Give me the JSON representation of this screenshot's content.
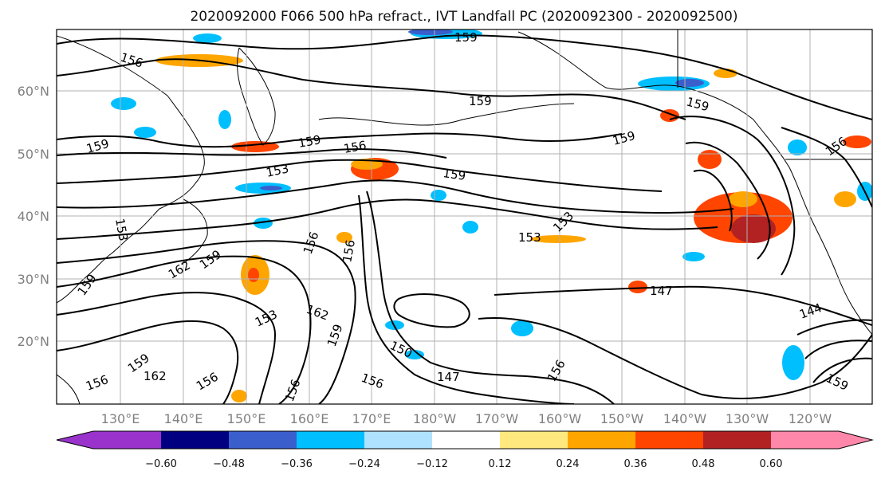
{
  "title": "2020092000 F066 500 hPa refract., IVT Landfall PC (2020092300 - 2020092500)",
  "lat_labels": [
    "20°N",
    "30°N",
    "40°N",
    "50°N",
    "60°N"
  ],
  "lon_labels": [
    "130°E",
    "140°E",
    "150°E",
    "160°E",
    "170°E",
    "180°W",
    "170°W",
    "160°W",
    "150°W",
    "140°W",
    "130°W",
    "120°W"
  ],
  "colorbar": {
    "colors": [
      "#9933cc",
      "#000080",
      "#3a5fcd",
      "#00bfff",
      "#afe2ff",
      "#ffffff",
      "#ffe97f",
      "#ffa500",
      "#ff4500",
      "#b22222",
      "#ff88aa"
    ],
    "ticks": [
      "−0.60",
      "−0.48",
      "−0.36",
      "−0.24",
      "−0.12",
      "0.12",
      "0.24",
      "0.36",
      "0.48",
      "0.60"
    ]
  },
  "contour_labels": [
    "156",
    "159",
    "159",
    "159",
    "159",
    "156",
    "153",
    "159",
    "153",
    "153",
    "153",
    "159",
    "156",
    "156",
    "162",
    "159",
    "159",
    "153",
    "162",
    "159",
    "150",
    "147",
    "156",
    "156",
    "156",
    "156",
    "159",
    "162",
    "159",
    "147",
    "144",
    "156",
    "159",
    "156"
  ]
}
